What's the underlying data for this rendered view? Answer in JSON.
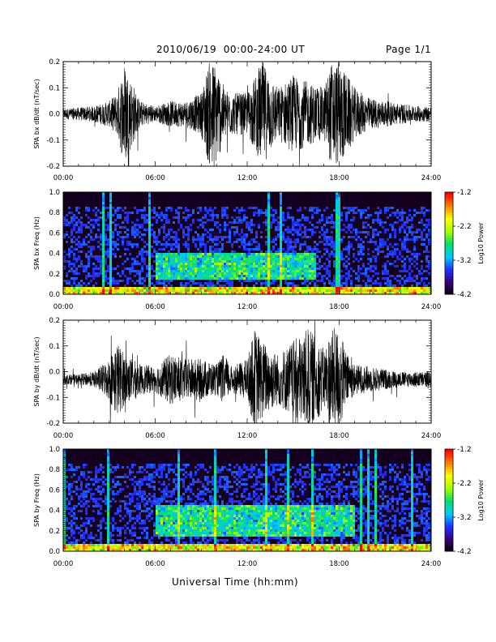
{
  "header": {
    "title": "2010/06/19  00:00-24:00 UT",
    "page": "Page 1/1"
  },
  "x_axis": {
    "label": "Universal Time (hh:mm)",
    "ticks": [
      "00:00",
      "06:00",
      "12:00",
      "18:00",
      "24:00"
    ],
    "range_hours": [
      0,
      24
    ]
  },
  "colorbar": {
    "label": "Log10 Power",
    "ticks": [
      "-1.2",
      "-2.2",
      "-3.2",
      "-4.2"
    ],
    "range": [
      -4.2,
      -1.2
    ],
    "colors": [
      "#000000",
      "#3a0078",
      "#2030ff",
      "#00c8ff",
      "#00e070",
      "#a0ff00",
      "#ffff00",
      "#ff8000",
      "#ff0000"
    ]
  },
  "chart_data": [
    {
      "type": "line",
      "ylabel": "SPA bx dB/dt (nT/sec)",
      "ylim": [
        -0.2,
        0.2
      ],
      "yticks": [
        "-0.2",
        "-0.1",
        "0.0",
        "0.1",
        "0.2"
      ],
      "baseline": 0.0,
      "series": [
        {
          "x_hours": [
            0,
            1,
            2,
            3,
            3.5,
            4,
            5,
            6,
            7,
            8,
            9,
            9.5,
            10,
            10.5,
            11,
            12,
            13,
            14,
            15,
            16,
            17,
            17.5,
            18,
            18.5,
            19,
            20,
            21,
            22,
            23,
            24
          ],
          "envelope": [
            0.02,
            0.025,
            0.03,
            0.05,
            0.08,
            0.2,
            0.05,
            0.03,
            0.05,
            0.05,
            0.08,
            0.2,
            0.2,
            0.1,
            0.08,
            0.08,
            0.2,
            0.1,
            0.15,
            0.12,
            0.1,
            0.2,
            0.2,
            0.15,
            0.1,
            0.06,
            0.05,
            0.04,
            0.03,
            0.03
          ]
        }
      ]
    },
    {
      "type": "heatmap",
      "ylabel": "SPA bx Freq (Hz)",
      "ylim": [
        0.0,
        1.0
      ],
      "yticks": [
        "0.0",
        "0.2",
        "0.4",
        "0.6",
        "0.8",
        "1.0"
      ],
      "x_hours": [
        0,
        24
      ],
      "features": {
        "low_freq_band_hz": [
          0.0,
          0.05
        ],
        "emission_band_hz": [
          0.15,
          0.4
        ],
        "emission_hours": [
          6,
          16.5
        ]
      }
    },
    {
      "type": "line",
      "ylabel": "SPA by dB/dt (nT/sec)",
      "ylim": [
        -0.2,
        0.2
      ],
      "yticks": [
        "-0.2",
        "-0.1",
        "0.0",
        "0.1",
        "0.2"
      ],
      "baseline": -0.03,
      "series": [
        {
          "x_hours": [
            0,
            1,
            2,
            3,
            3.5,
            4,
            5,
            6,
            7,
            8,
            9,
            10,
            10.5,
            11,
            12,
            12.5,
            13,
            14,
            15,
            16,
            17,
            17.5,
            18,
            18.5,
            19,
            20,
            21,
            22,
            23,
            24
          ],
          "envelope": [
            0.02,
            0.02,
            0.03,
            0.08,
            0.15,
            0.1,
            0.06,
            0.05,
            0.1,
            0.08,
            0.08,
            0.06,
            0.1,
            0.05,
            0.08,
            0.2,
            0.15,
            0.1,
            0.15,
            0.2,
            0.12,
            0.2,
            0.2,
            0.1,
            0.06,
            0.05,
            0.04,
            0.03,
            0.03,
            0.03
          ]
        }
      ]
    },
    {
      "type": "heatmap",
      "ylabel": "SPA by Freq (Hz)",
      "ylim": [
        0.0,
        1.0
      ],
      "yticks": [
        "0.0",
        "0.2",
        "0.4",
        "0.6",
        "0.8",
        "1.0"
      ],
      "x_hours": [
        0,
        24
      ],
      "features": {
        "low_freq_band_hz": [
          0.0,
          0.05
        ],
        "emission_band_hz": [
          0.15,
          0.45
        ],
        "emission_hours": [
          6,
          19
        ]
      }
    }
  ]
}
